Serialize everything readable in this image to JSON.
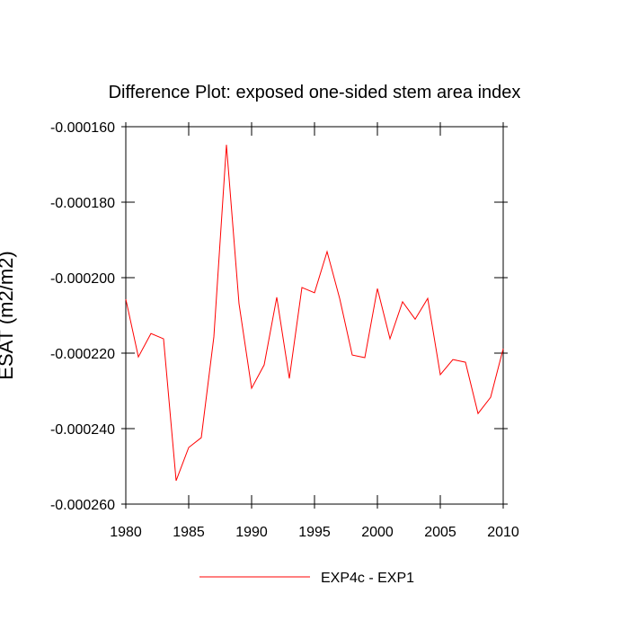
{
  "chart_data": {
    "type": "line",
    "title": "Difference Plot: exposed one-sided stem area index",
    "y_label": "ESAT (m2/m2)",
    "x": [
      1980,
      1981,
      1982,
      1983,
      1984,
      1985,
      1986,
      1987,
      1988,
      1989,
      1990,
      1991,
      1992,
      1993,
      1994,
      1995,
      1996,
      1997,
      1998,
      1999,
      2000,
      2001,
      2002,
      2003,
      2004,
      2005,
      2006,
      2007,
      2008,
      2009,
      2010
    ],
    "series": [
      {
        "name": "EXP4c - EXP1",
        "color": "#ff0000",
        "values": [
          -0.0002057,
          -0.000221,
          -0.0002148,
          -0.0002162,
          -0.0002538,
          -0.000245,
          -0.0002424,
          -0.0002157,
          -0.0001648,
          -0.0002069,
          -0.0002293,
          -0.0002231,
          -0.0002052,
          -0.0002267,
          -0.0002026,
          -0.000204,
          -0.0001931,
          -0.0002055,
          -0.0002205,
          -0.0002212,
          -0.0002029,
          -0.0002162,
          -0.0002064,
          -0.000211,
          -0.0002055,
          -0.0002257,
          -0.0002217,
          -0.0002224,
          -0.000236,
          -0.0002317,
          -0.0002188
        ]
      }
    ],
    "xlim": [
      1980,
      2010
    ],
    "xticks": [
      1980,
      1985,
      1990,
      1995,
      2000,
      2005,
      2010
    ],
    "ylim": [
      -0.00026,
      -0.00016
    ],
    "yticks": [
      {
        "value": -0.00026,
        "label": "-0.000260"
      },
      {
        "value": -0.00024,
        "label": "-0.000240"
      },
      {
        "value": -0.00022,
        "label": "-0.000220"
      },
      {
        "value": -0.0002,
        "label": "-0.000200"
      },
      {
        "value": -0.00018,
        "label": "-0.000180"
      },
      {
        "value": -0.00016,
        "label": "-0.000160"
      }
    ],
    "legend": "bottom"
  }
}
